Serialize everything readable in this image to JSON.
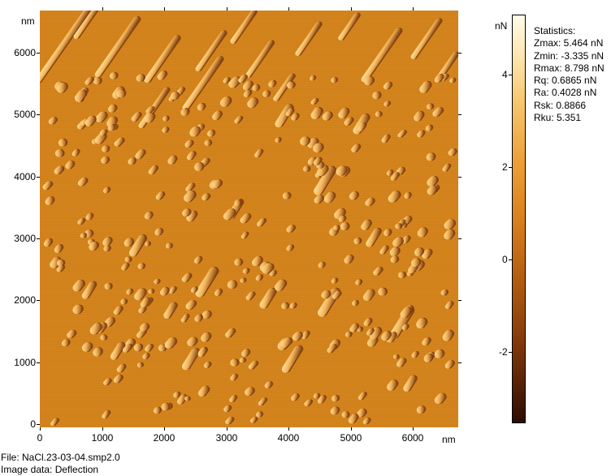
{
  "image_panel": {
    "y_unit": "nm",
    "x_unit": "nm",
    "y_ticks": [
      "6000",
      "5000",
      "4000",
      "3000",
      "2000",
      "1000",
      "0"
    ],
    "x_ticks": [
      "0",
      "1000",
      "2000",
      "3000",
      "4000",
      "5000",
      "6000"
    ],
    "colors": {
      "surface": "#d3841c",
      "highlight": "#ffe09a",
      "shadow": "#7a3708"
    }
  },
  "colorbar": {
    "unit": "nN",
    "ticks": [
      "4",
      "2",
      "0",
      "-2"
    ]
  },
  "statistics": {
    "title": "Statistics:",
    "lines": [
      "Zmax: 5.464 nN",
      "Zmin: -3.335 nN",
      "Rmax: 8.798 nN",
      "Rq: 0.6865 nN",
      "Ra: 0.4028 nN",
      "Rsk: 0.8866",
      "Rku: 5.351"
    ]
  },
  "footer": {
    "file": "File: NaCl.23-03-04.smp2.0",
    "image_data": "Image data: Deflection"
  }
}
